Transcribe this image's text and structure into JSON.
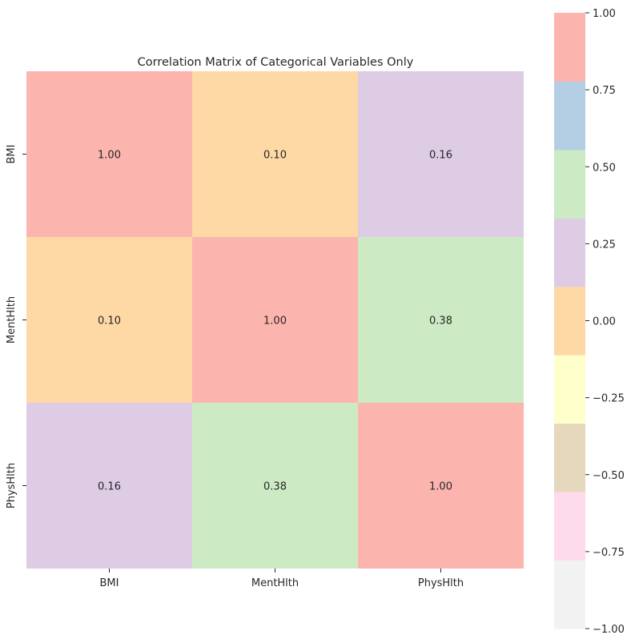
{
  "chart_data": {
    "type": "heatmap",
    "title": "Correlation Matrix of Categorical Variables Only",
    "x_labels": [
      "BMI",
      "MentHlth",
      "PhysHlth"
    ],
    "y_labels": [
      "BMI",
      "MentHlth",
      "PhysHlth"
    ],
    "values": [
      [
        1.0,
        0.1,
        0.16
      ],
      [
        0.1,
        1.0,
        0.38
      ],
      [
        0.16,
        0.38,
        1.0
      ]
    ],
    "annotations": [
      [
        "1.00",
        "0.10",
        "0.16"
      ],
      [
        "0.10",
        "1.00",
        "0.38"
      ],
      [
        "0.16",
        "0.38",
        "1.00"
      ]
    ],
    "vmin": -1.0,
    "vmax": 1.0,
    "colormap": "Pastel1_r",
    "colorbar_colors": [
      "#f2f2f2",
      "#fddaec",
      "#e5d8bd",
      "#ffffcc",
      "#fed9a6",
      "#decbe4",
      "#ccebc5",
      "#b3cde3",
      "#fbb4ae"
    ],
    "colorbar_ticks": [
      "1.00",
      "0.75",
      "0.50",
      "0.25",
      "0.00",
      "−0.25",
      "−0.50",
      "−0.75",
      "−1.00"
    ],
    "colorbar_tick_values": [
      1.0,
      0.75,
      0.5,
      0.25,
      0.0,
      -0.25,
      -0.5,
      -0.75,
      -1.0
    ]
  }
}
